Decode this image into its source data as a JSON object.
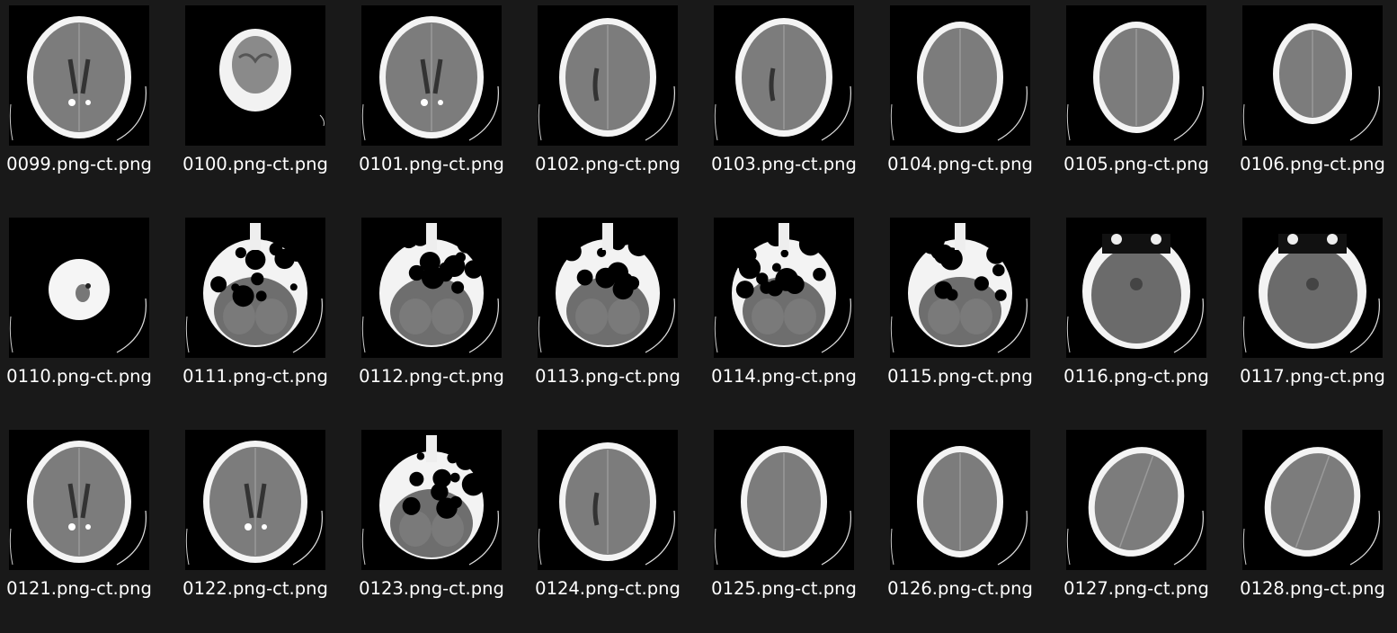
{
  "view": {
    "background": "#191919",
    "thumbnail_background": "#000000",
    "label_color": "#ffffff"
  },
  "rows": [
    {
      "items": [
        {
          "name": "0099.png-ct.png",
          "kind": "axial-mid"
        },
        {
          "name": "0100.png-ct.png",
          "kind": "skull-top"
        },
        {
          "name": "0101.png-ct.png",
          "kind": "axial-mid"
        },
        {
          "name": "0102.png-ct.png",
          "kind": "axial-upper"
        },
        {
          "name": "0103.png-ct.png",
          "kind": "axial-upper"
        },
        {
          "name": "0104.png-ct.png",
          "kind": "axial-high"
        },
        {
          "name": "0105.png-ct.png",
          "kind": "axial-high"
        },
        {
          "name": "0106.png-ct.png",
          "kind": "axial-vertex"
        }
      ]
    },
    {
      "items": [
        {
          "name": "0110.png-ct.png",
          "kind": "skull-base-small"
        },
        {
          "name": "0111.png-ct.png",
          "kind": "skull-base"
        },
        {
          "name": "0112.png-ct.png",
          "kind": "skull-base"
        },
        {
          "name": "0113.png-ct.png",
          "kind": "skull-base"
        },
        {
          "name": "0114.png-ct.png",
          "kind": "skull-base"
        },
        {
          "name": "0115.png-ct.png",
          "kind": "skull-base"
        },
        {
          "name": "0116.png-ct.png",
          "kind": "posterior-fossa"
        },
        {
          "name": "0117.png-ct.png",
          "kind": "posterior-fossa"
        }
      ]
    },
    {
      "items": [
        {
          "name": "0121.png-ct.png",
          "kind": "axial-mid"
        },
        {
          "name": "0122.png-ct.png",
          "kind": "axial-mid"
        },
        {
          "name": "0123.png-ct.png",
          "kind": "skull-base"
        },
        {
          "name": "0124.png-ct.png",
          "kind": "axial-upper"
        },
        {
          "name": "0125.png-ct.png",
          "kind": "axial-high"
        },
        {
          "name": "0126.png-ct.png",
          "kind": "axial-high"
        },
        {
          "name": "0127.png-ct.png",
          "kind": "axial-tilted"
        },
        {
          "name": "0128.png-ct.png",
          "kind": "axial-tilted"
        }
      ]
    }
  ]
}
